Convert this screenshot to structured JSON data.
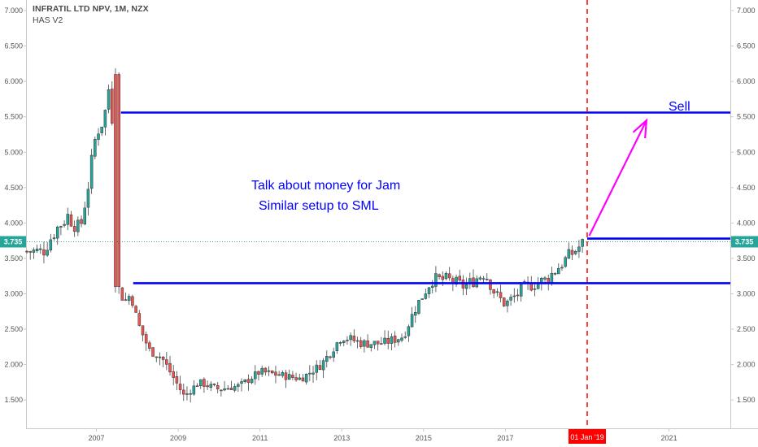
{
  "header": {
    "symbol_title": "INFRATIL LTD NPV, 1M, NZX",
    "indicator": "HAS V2"
  },
  "colors": {
    "up": "#26a69a",
    "down": "#ef5350",
    "level_line": "#0000ff",
    "arrow": "#ff00ff",
    "date_marker": "#ff0000",
    "price_badge": "#26a69a"
  },
  "current_price_label": "3.735",
  "date_marker_label": "01 Jan '19",
  "annotations": {
    "text_line_1": "Talk about money for Jam",
    "text_line_2": "Similar setup to SML",
    "sell": "Sell"
  },
  "chart_data": {
    "type": "candlestick",
    "title": "INFRATIL LTD NPV, 1M, NZX",
    "xlabel": "",
    "ylabel": "",
    "x_ticks": [
      "2007",
      "2009",
      "2011",
      "2013",
      "2015",
      "2017",
      "2021"
    ],
    "x_tick_years": [
      2007,
      2009,
      2011,
      2013,
      2015,
      2017,
      2021
    ],
    "xlim": [
      2005.3,
      2022.5
    ],
    "y_ticks": [
      "1.500",
      "2.000",
      "2.500",
      "3.000",
      "3.500",
      "4.000",
      "4.500",
      "5.000",
      "5.500",
      "6.000",
      "6.500",
      "7.000"
    ],
    "ylim": [
      1.1,
      7.15
    ],
    "grid": false,
    "current_price": 3.735,
    "levels": [
      {
        "name": "resistance",
        "y": 5.56,
        "x_start": 2007.6,
        "x_end": 2022.5
      },
      {
        "name": "support",
        "y": 3.15,
        "x_start": 2007.9,
        "x_end": 2022.5
      },
      {
        "name": "breakout",
        "y": 3.78,
        "x_start": 2019.0,
        "x_end": 2022.5
      }
    ],
    "date_marker_x": 2019.0,
    "arrow": {
      "from": [
        2019.05,
        3.82
      ],
      "to": [
        2020.45,
        5.45
      ]
    },
    "keypoints": [
      [
        2005.3,
        3.6
      ],
      [
        2005.7,
        3.6
      ],
      [
        2006.0,
        3.9
      ],
      [
        2006.3,
        4.1
      ],
      [
        2006.6,
        3.9
      ],
      [
        2006.85,
        4.7
      ],
      [
        2007.0,
        5.3
      ],
      [
        2007.2,
        5.5
      ],
      [
        2007.35,
        6.1
      ],
      [
        2007.45,
        4.4
      ],
      [
        2007.5,
        3.1
      ],
      [
        2007.7,
        2.9
      ],
      [
        2007.85,
        3.0
      ],
      [
        2008.0,
        2.6
      ],
      [
        2008.3,
        2.2
      ],
      [
        2008.6,
        2.1
      ],
      [
        2008.9,
        1.8
      ],
      [
        2009.15,
        1.55
      ],
      [
        2009.5,
        1.75
      ],
      [
        2010.0,
        1.65
      ],
      [
        2010.5,
        1.7
      ],
      [
        2011.0,
        1.9
      ],
      [
        2011.5,
        1.85
      ],
      [
        2012.0,
        1.8
      ],
      [
        2012.5,
        2.0
      ],
      [
        2013.0,
        2.4
      ],
      [
        2013.5,
        2.3
      ],
      [
        2014.0,
        2.3
      ],
      [
        2014.5,
        2.4
      ],
      [
        2014.8,
        2.8
      ],
      [
        2015.2,
        3.2
      ],
      [
        2015.6,
        3.2
      ],
      [
        2016.0,
        3.1
      ],
      [
        2016.5,
        3.3
      ],
      [
        2016.75,
        3.0
      ],
      [
        2017.0,
        2.85
      ],
      [
        2017.5,
        3.1
      ],
      [
        2018.0,
        3.2
      ],
      [
        2018.5,
        3.5
      ],
      [
        2018.95,
        3.74
      ]
    ]
  }
}
